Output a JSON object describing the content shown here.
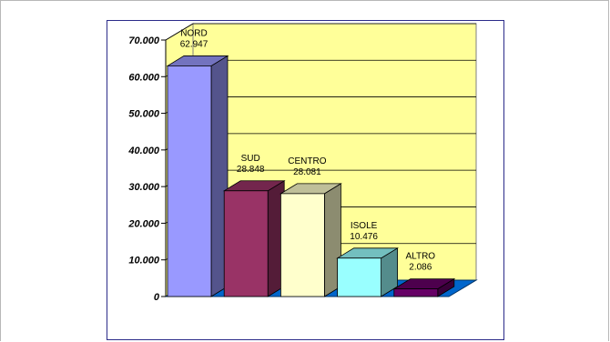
{
  "chart_data": {
    "type": "bar",
    "categories": [
      "NORD",
      "SUD",
      "CENTRO",
      "ISOLE",
      "ALTRO"
    ],
    "values": [
      62947,
      28848,
      28081,
      10476,
      2086
    ],
    "value_labels": [
      "62.947",
      "28.848",
      "28.081",
      "10.476",
      "2.086"
    ],
    "yticks": [
      "0",
      "10.000",
      "20.000",
      "30.000",
      "40.000",
      "50.000",
      "60.000",
      "70.000"
    ],
    "ylim": [
      0,
      70000
    ],
    "title": "",
    "xlabel": "",
    "ylabel": "",
    "grid": true,
    "three_d": true,
    "colors": {
      "wall": "#ffff99",
      "floor": "#0066cc",
      "bars": [
        "#9999ff",
        "#993366",
        "#ffffcc",
        "#99ffff",
        "#660066"
      ]
    }
  }
}
